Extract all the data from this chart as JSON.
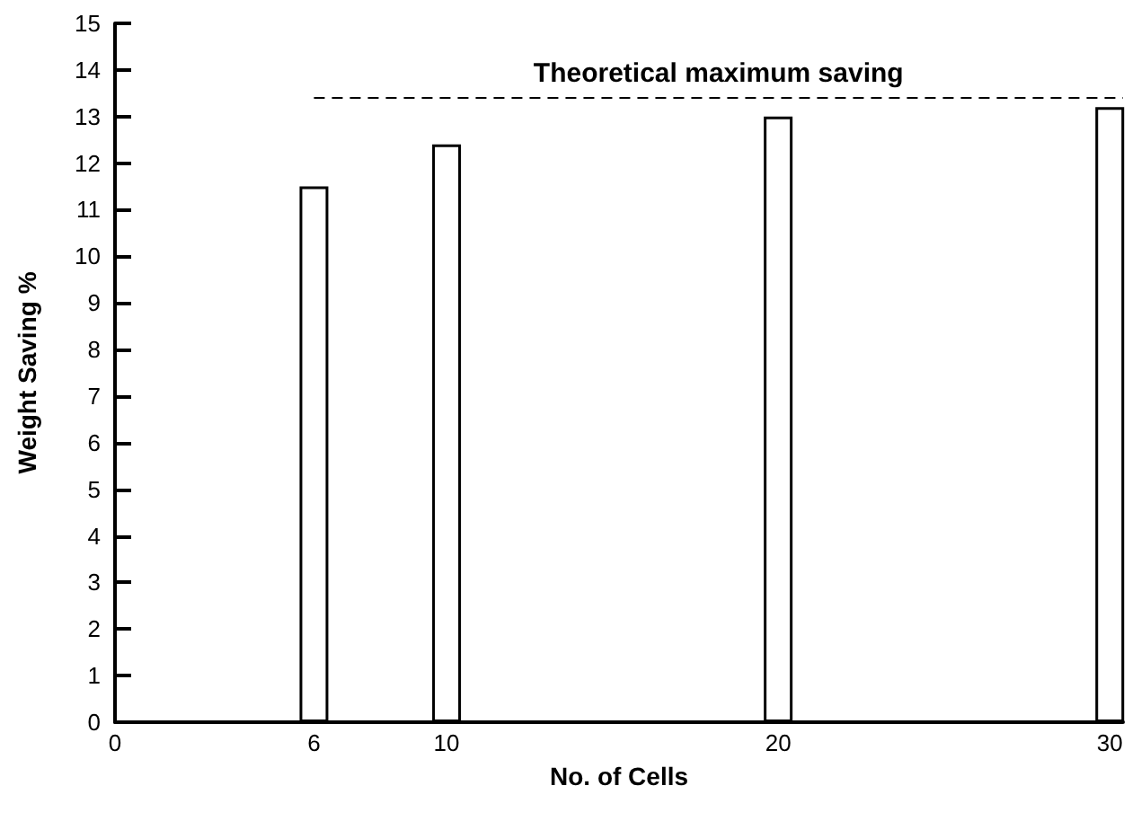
{
  "chart_data": {
    "type": "bar",
    "xlabel": "No. of Cells",
    "ylabel": "Weight Saving %",
    "x": [
      6,
      10,
      20,
      30
    ],
    "values": [
      11.5,
      12.4,
      13.0,
      13.2
    ],
    "color": "#ffffff",
    "xlim": [
      0,
      30.4
    ],
    "xticks": [
      0,
      6,
      10,
      20,
      30
    ],
    "ylim": [
      0,
      15
    ],
    "yticks": [
      0,
      1,
      2,
      3,
      4,
      5,
      6,
      7,
      8,
      9,
      10,
      11,
      12,
      13,
      14,
      15
    ],
    "ref_lines": [
      {
        "axis": "y",
        "value": 13.4,
        "label": "Theoretical maximum saving",
        "color": "#000000",
        "line_style": "dashed"
      }
    ],
    "grid": false
  }
}
